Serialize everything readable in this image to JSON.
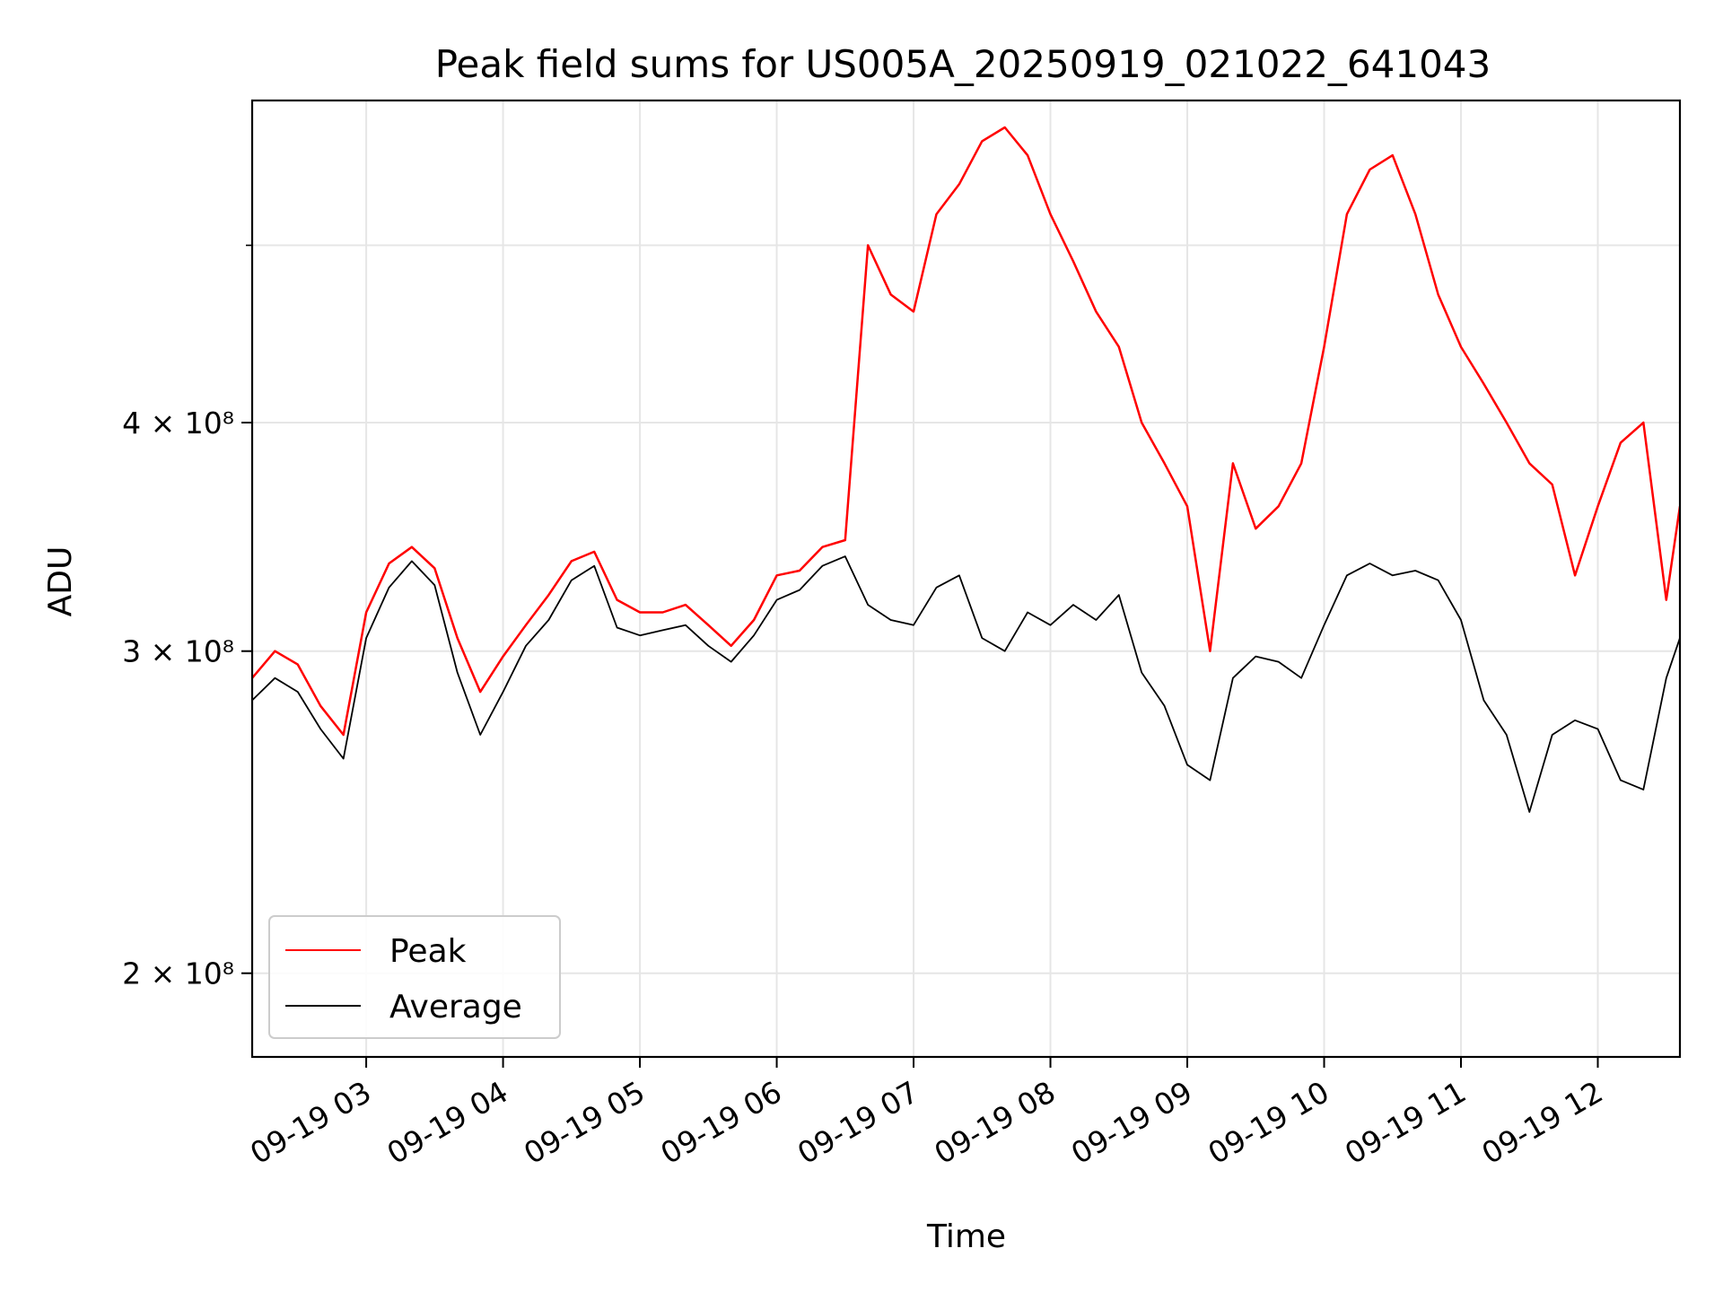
{
  "chart_data": {
    "type": "line",
    "title": "Peak field sums for US005A_20250919_021022_641043",
    "xlabel": "Time",
    "ylabel": "ADU",
    "y_scale": "log",
    "ylim": [
      180000000,
      600000000
    ],
    "xlim": [
      "09-19 02:10",
      "09-19 12:36"
    ],
    "x_ticks": [
      "09-19 03",
      "09-19 04",
      "09-19 05",
      "09-19 06",
      "09-19 07",
      "09-19 08",
      "09-19 09",
      "09-19 10",
      "09-19 11",
      "09-19 12"
    ],
    "y_ticks": [
      {
        "value": 200000000,
        "label": "2 × 10⁸"
      },
      {
        "value": 300000000,
        "label": "3 × 10⁸"
      },
      {
        "value": 400000000,
        "label": "4 × 10⁸"
      }
    ],
    "grid": true,
    "legend_position": "lower-left",
    "x": [
      "09-19 02:10",
      "09-19 02:20",
      "09-19 02:30",
      "09-19 02:40",
      "09-19 02:50",
      "09-19 03:00",
      "09-19 03:10",
      "09-19 03:20",
      "09-19 03:30",
      "09-19 03:40",
      "09-19 03:50",
      "09-19 04:00",
      "09-19 04:10",
      "09-19 04:20",
      "09-19 04:30",
      "09-19 04:40",
      "09-19 04:50",
      "09-19 05:00",
      "09-19 05:10",
      "09-19 05:20",
      "09-19 05:30",
      "09-19 05:40",
      "09-19 05:50",
      "09-19 06:00",
      "09-19 06:10",
      "09-19 06:20",
      "09-19 06:30",
      "09-19 06:40",
      "09-19 06:50",
      "09-19 07:00",
      "09-19 07:10",
      "09-19 07:20",
      "09-19 07:30",
      "09-19 07:40",
      "09-19 07:50",
      "09-19 08:00",
      "09-19 08:10",
      "09-19 08:20",
      "09-19 08:30",
      "09-19 08:40",
      "09-19 08:50",
      "09-19 09:00",
      "09-19 09:10",
      "09-19 09:20",
      "09-19 09:30",
      "09-19 09:40",
      "09-19 09:50",
      "09-19 10:00",
      "09-19 10:10",
      "09-19 10:20",
      "09-19 10:30",
      "09-19 10:40",
      "09-19 10:50",
      "09-19 11:00",
      "09-19 11:10",
      "09-19 11:20",
      "09-19 11:30",
      "09-19 11:40",
      "09-19 11:50",
      "09-19 12:00",
      "09-19 12:10",
      "09-19 12:20",
      "09-19 12:30",
      "09-19 12:36"
    ],
    "series": [
      {
        "name": "Peak",
        "color": "#ff0000",
        "values": [
          290000000,
          300000000,
          295000000,
          280000000,
          270000000,
          315000000,
          335000000,
          342000000,
          333000000,
          305000000,
          285000000,
          298000000,
          310000000,
          322000000,
          336000000,
          340000000,
          320000000,
          315000000,
          315000000,
          318000000,
          310000000,
          302000000,
          312000000,
          330000000,
          332000000,
          342000000,
          345000000,
          500000000,
          470000000,
          460000000,
          520000000,
          540000000,
          570000000,
          580000000,
          560000000,
          520000000,
          490000000,
          460000000,
          440000000,
          400000000,
          380000000,
          360000000,
          300000000,
          380000000,
          350000000,
          360000000,
          380000000,
          440000000,
          520000000,
          550000000,
          560000000,
          520000000,
          470000000,
          440000000,
          420000000,
          400000000,
          380000000,
          370000000,
          330000000,
          360000000,
          390000000,
          400000000,
          320000000,
          360000000
        ]
      },
      {
        "name": "Average",
        "color": "#000000",
        "values": [
          282000000,
          290000000,
          285000000,
          272000000,
          262000000,
          305000000,
          325000000,
          336000000,
          326000000,
          292000000,
          270000000,
          285000000,
          302000000,
          312000000,
          328000000,
          334000000,
          309000000,
          306000000,
          308000000,
          310000000,
          302000000,
          296000000,
          306000000,
          320000000,
          324000000,
          334000000,
          338000000,
          318000000,
          312000000,
          310000000,
          325000000,
          330000000,
          305000000,
          300000000,
          315000000,
          310000000,
          318000000,
          312000000,
          322000000,
          292000000,
          280000000,
          260000000,
          255000000,
          290000000,
          298000000,
          296000000,
          290000000,
          310000000,
          330000000,
          335000000,
          330000000,
          332000000,
          328000000,
          312000000,
          282000000,
          270000000,
          245000000,
          270000000,
          275000000,
          272000000,
          255000000,
          252000000,
          290000000,
          305000000
        ]
      }
    ]
  }
}
